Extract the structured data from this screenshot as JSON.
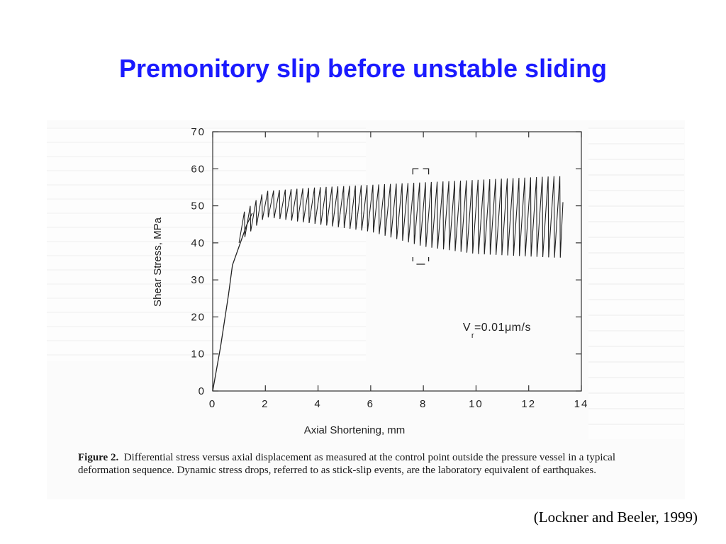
{
  "slide": {
    "title": "Premonitory slip before unstable sliding",
    "citation": "(Lockner and Beeler, 1999)"
  },
  "caption": {
    "label": "Figure  2.",
    "text": "Differential stress versus axial displacement as measured at the control point outside the pressure vessel in a typical deformation sequence. Dynamic stress drops, referred to as stick-slip events, are the laboratory equivalent of earthquakes."
  },
  "chart_data": {
    "type": "line",
    "xlabel": "Axial  Shortening,  mm",
    "ylabel": "Shear Stress, MPa",
    "xlim": [
      0,
      14
    ],
    "ylim": [
      0,
      70
    ],
    "xticks": [
      0,
      2,
      4,
      6,
      8,
      10,
      12,
      14
    ],
    "yticks": [
      0,
      10,
      20,
      30,
      40,
      50,
      60,
      70
    ],
    "annotation": {
      "text": "V =0.01μm/s",
      "subscript": "r"
    },
    "bracket_x_range": [
      7.6,
      8.2
    ],
    "grid": false,
    "loading_curve": {
      "x": [
        0,
        0.3,
        0.6,
        0.75,
        0.9,
        1.1,
        1.3,
        1.5
      ],
      "y": [
        0,
        12,
        26,
        34,
        37,
        41,
        45,
        48
      ]
    },
    "stick_slip": {
      "x_start": 1.0,
      "x_end": 13.2,
      "cycles": 55,
      "peak": {
        "x": [
          1.0,
          2.0,
          4.0,
          7.0,
          10.0,
          13.0
        ],
        "y": [
          47,
          54,
          55,
          56,
          57,
          58
        ]
      },
      "trough": {
        "x": [
          1.0,
          2.0,
          4.0,
          6.0,
          8.0,
          10.0,
          13.0
        ],
        "y": [
          40,
          47,
          45,
          43,
          39,
          37,
          36
        ]
      }
    }
  }
}
